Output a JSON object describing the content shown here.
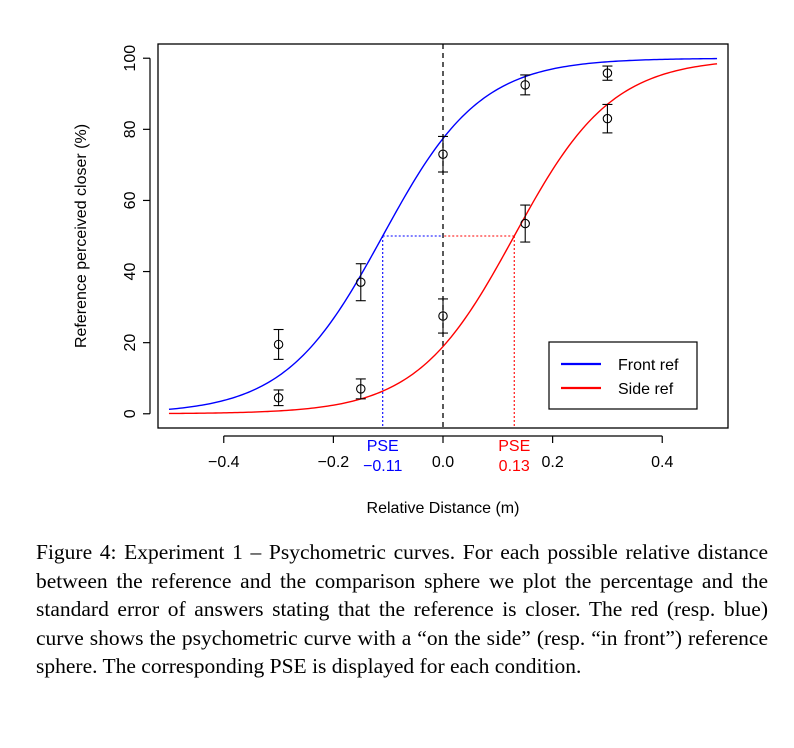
{
  "chart_data": {
    "type": "line",
    "xlabel": "Relative Distance (m)",
    "ylabel": "Reference perceived closer (%)",
    "xlim": [
      -0.52,
      0.52
    ],
    "ylim": [
      -4,
      104
    ],
    "xticks": [
      -0.4,
      -0.2,
      0.0,
      0.2,
      0.4
    ],
    "xtick_labels": [
      "−0.4",
      "−0.2",
      "0.0",
      "0.2",
      "0.4"
    ],
    "yticks": [
      0,
      20,
      40,
      60,
      80,
      100
    ],
    "ytick_labels": [
      "0",
      "20",
      "40",
      "60",
      "80",
      "100"
    ],
    "grid": false,
    "legend_position": "bottom-right",
    "reference_line_x": 0.0,
    "series": [
      {
        "name": "Front ref",
        "color": "#0000ff",
        "pse": -0.11,
        "slope": 11.2,
        "curve_x_range": [
          -0.5,
          0.5
        ],
        "points": [
          {
            "x": -0.3,
            "y": 19.5,
            "err": 4.2
          },
          {
            "x": -0.15,
            "y": 37,
            "err": 5.2
          },
          {
            "x": 0.0,
            "y": 73,
            "err": 5
          },
          {
            "x": 0.15,
            "y": 92.5,
            "err": 2.8
          },
          {
            "x": 0.3,
            "y": 95.8,
            "err": 2
          }
        ]
      },
      {
        "name": "Side ref",
        "color": "#ff0000",
        "pse": 0.13,
        "slope": 11.2,
        "curve_x_range": [
          -0.5,
          0.5
        ],
        "points": [
          {
            "x": -0.3,
            "y": 4.5,
            "err": 2.2
          },
          {
            "x": -0.15,
            "y": 7,
            "err": 2.8
          },
          {
            "x": 0.0,
            "y": 27.5,
            "err": 4.8
          },
          {
            "x": 0.15,
            "y": 53.5,
            "err": 5.2
          },
          {
            "x": 0.3,
            "y": 83,
            "err": 4
          }
        ]
      }
    ],
    "pse_annotations": [
      {
        "label": "PSE",
        "value_label": "−0.11",
        "x": -0.11,
        "color": "#0000ff"
      },
      {
        "label": "PSE",
        "value_label": "0.13",
        "x": 0.13,
        "color": "#ff0000"
      }
    ]
  },
  "caption": "Figure 4: Experiment 1 – Psychometric curves. For each possible relative distance between the reference and the comparison sphere we plot the percentage and the standard error of answers stating that the reference is closer. The red (resp. blue) curve shows the psychometric curve with a “on the side” (resp. “in front”) reference sphere. The corresponding PSE is displayed for each condition."
}
